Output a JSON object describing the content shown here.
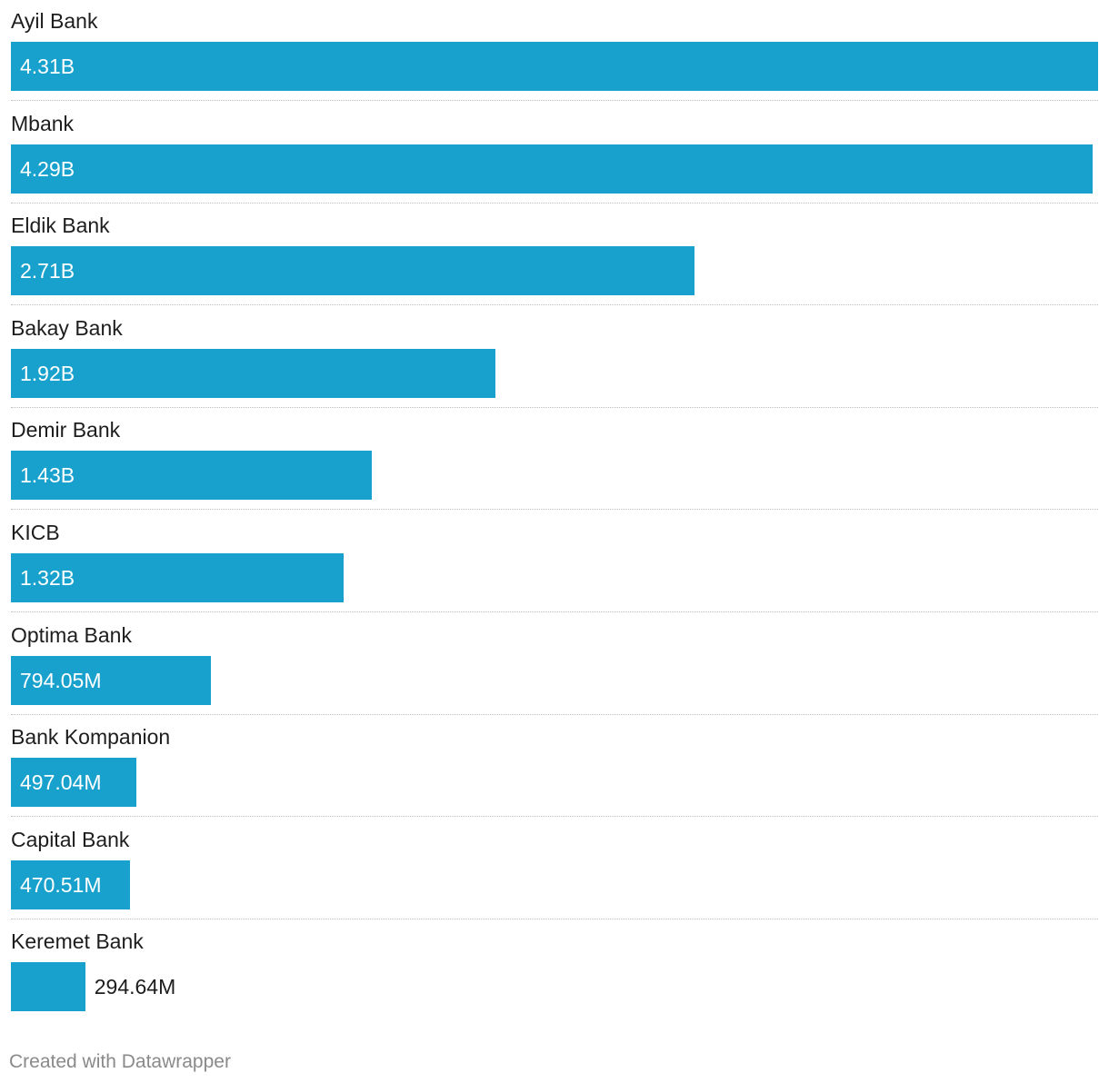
{
  "chart_data": {
    "type": "bar",
    "orientation": "horizontal",
    "categories": [
      "Ayil Bank",
      "Mbank",
      "Eldik Bank",
      "Bakay Bank",
      "Demir Bank",
      "KICB",
      "Optima Bank",
      "Bank Kompanion",
      "Capital Bank",
      "Keremet Bank"
    ],
    "values": [
      4310000000,
      4290000000,
      2710000000,
      1920000000,
      1430000000,
      1320000000,
      794050000,
      497040000,
      470510000,
      294640000
    ],
    "value_labels": [
      "4.31B",
      "4.29B",
      "2.71B",
      "1.92B",
      "1.43B",
      "1.32B",
      "794.05M",
      "497.04M",
      "470.51M",
      "294.64M"
    ],
    "xlim": [
      0,
      4310000000
    ],
    "grid": false,
    "bar_color": "#18a1cd"
  },
  "footer": {
    "credit": "Created with Datawrapper"
  }
}
